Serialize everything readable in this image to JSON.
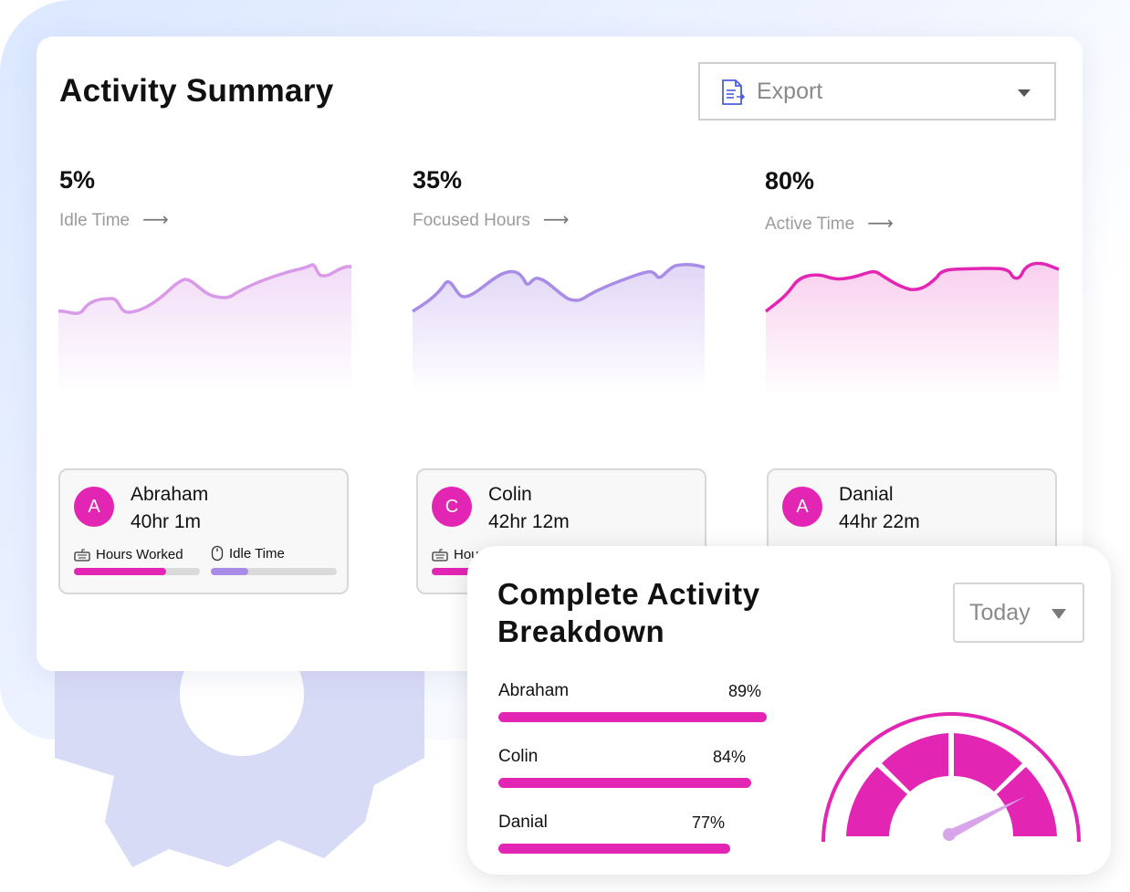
{
  "accent": "#e325b4",
  "summary": {
    "title": "Activity Summary",
    "export_label": "Export",
    "metrics": [
      {
        "value": "5%",
        "label": "Idle Time",
        "color": "#d99ae8"
      },
      {
        "value": "35%",
        "label": "Focused Hours",
        "color": "#a98be8"
      },
      {
        "value": "80%",
        "label": "Active Time",
        "color": "#e325b4"
      }
    ],
    "users": [
      {
        "initial": "A",
        "name": "Abraham",
        "hours": "40hr 1m",
        "hours_worked_label": "Hours Worked",
        "idle_label": "Idle Time",
        "hours_fraction": 0.73,
        "idle_fraction": 0.3
      },
      {
        "initial": "C",
        "name": "Colin",
        "hours": "42hr 12m",
        "hours_worked_label": "Hours Worked"
      },
      {
        "initial": "A",
        "name": "Danial",
        "hours": "44hr 22m"
      }
    ]
  },
  "breakdown": {
    "title": "Complete Activity Breakdown",
    "period": "Today",
    "rows": [
      {
        "name": "Abraham",
        "percent": "89%",
        "value": 89
      },
      {
        "name": "Colin",
        "percent": "84%",
        "value": 84
      },
      {
        "name": "Danial",
        "percent": "77%",
        "value": 77
      }
    ],
    "gauge_segments": 4
  }
}
